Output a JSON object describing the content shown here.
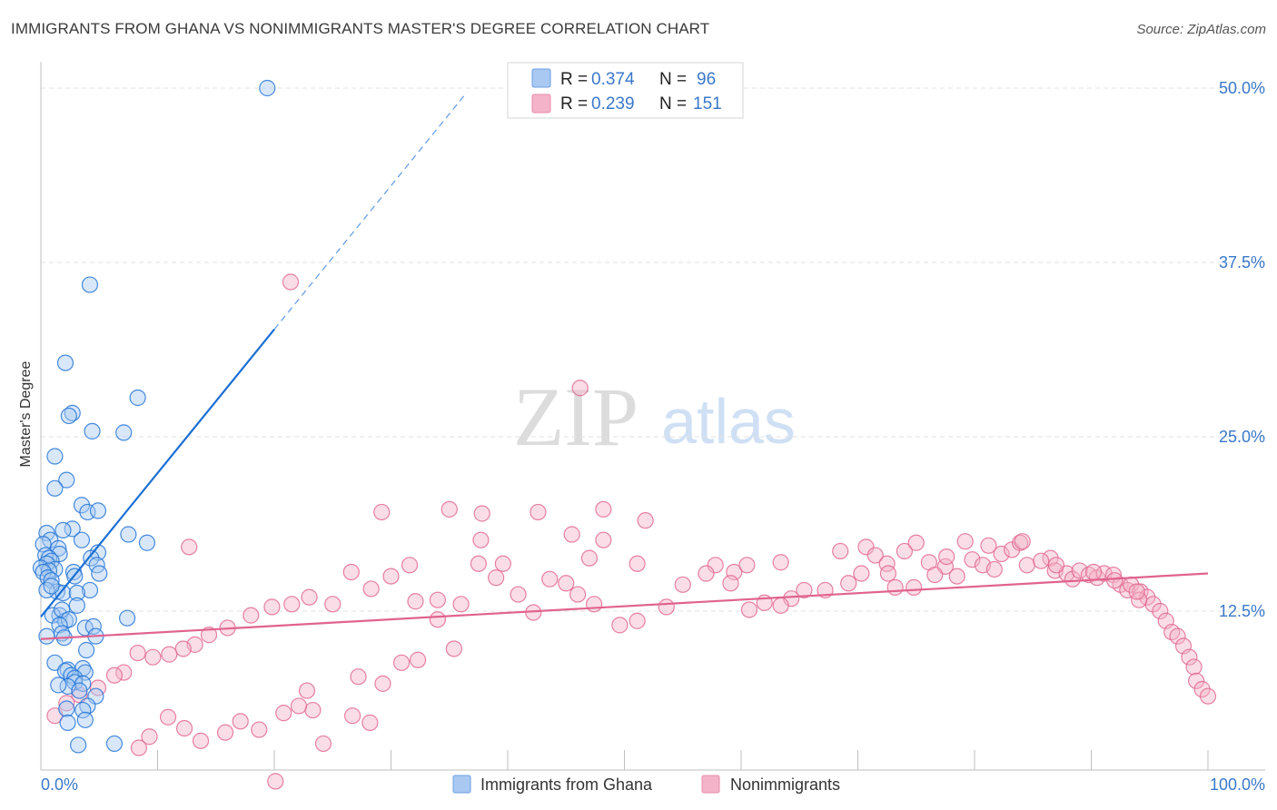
{
  "header": {
    "title": "IMMIGRANTS FROM GHANA VS NONIMMIGRANTS MASTER'S DEGREE CORRELATION CHART",
    "source": "Source: ZipAtlas.com"
  },
  "watermark": {
    "zip": "ZIP",
    "atlas": "atlas"
  },
  "colors": {
    "blue": "#1a6fd4",
    "blue_fill": "#a9c9f2",
    "pink": "#e0638f",
    "pink_fill": "#f4b3c8",
    "axis_text": "#3a78c9"
  },
  "chart_data": {
    "type": "scatter",
    "title": "IMMIGRANTS FROM GHANA VS NONIMMIGRANTS MASTER'S DEGREE CORRELATION CHART",
    "xlabel": "",
    "ylabel": "Master's Degree",
    "xlim": [
      0,
      100
    ],
    "ylim": [
      0,
      50
    ],
    "x_tick_labels": [
      "0.0%",
      "100.0%"
    ],
    "y_ticks": [
      12.5,
      25.0,
      37.5,
      50.0
    ],
    "y_tick_labels": [
      "12.5%",
      "25.0%",
      "37.5%",
      "50.0%"
    ],
    "grid": true,
    "legend": {
      "placement": "top-center",
      "entries": [
        {
          "r_label": "R =",
          "r_value": "0.374",
          "n_label": "N =",
          "n_value": "96"
        },
        {
          "r_label": "R =",
          "r_value": "0.239",
          "n_label": "N =",
          "n_value": "151"
        }
      ]
    },
    "bottom_legend": [
      "Immigrants from Ghana",
      "Nonimmigrants"
    ],
    "series": [
      {
        "name": "Immigrants from Ghana",
        "color": "#1a6fd4",
        "trend": {
          "x0": 0.0,
          "y0": 12.1,
          "x1": 20.0,
          "y1": 32.7,
          "dashed_to_x": 36.5
        },
        "points": [
          [
            19.4,
            50.0
          ],
          [
            4.2,
            35.9
          ],
          [
            2.1,
            30.3
          ],
          [
            8.3,
            27.8
          ],
          [
            2.7,
            26.7
          ],
          [
            2.4,
            26.5
          ],
          [
            4.4,
            25.4
          ],
          [
            7.1,
            25.3
          ],
          [
            1.2,
            23.6
          ],
          [
            2.2,
            21.9
          ],
          [
            1.2,
            21.3
          ],
          [
            3.5,
            20.1
          ],
          [
            4.0,
            19.6
          ],
          [
            4.9,
            19.7
          ],
          [
            2.7,
            18.4
          ],
          [
            1.9,
            18.3
          ],
          [
            0.5,
            18.1
          ],
          [
            0.8,
            17.6
          ],
          [
            3.5,
            17.6
          ],
          [
            7.5,
            18.0
          ],
          [
            9.1,
            17.4
          ],
          [
            0.2,
            17.3
          ],
          [
            1.5,
            17.0
          ],
          [
            1.6,
            16.6
          ],
          [
            4.9,
            16.7
          ],
          [
            0.4,
            16.5
          ],
          [
            0.7,
            16.3
          ],
          [
            4.3,
            16.3
          ],
          [
            0.9,
            16.1
          ],
          [
            0.5,
            15.9
          ],
          [
            4.8,
            15.8
          ],
          [
            0.0,
            15.6
          ],
          [
            1.2,
            15.5
          ],
          [
            0.7,
            15.4
          ],
          [
            0.2,
            15.3
          ],
          [
            2.8,
            15.3
          ],
          [
            5.0,
            15.2
          ],
          [
            0.6,
            14.9
          ],
          [
            2.9,
            15.0
          ],
          [
            0.9,
            14.7
          ],
          [
            1.4,
            13.9
          ],
          [
            0.5,
            14.0
          ],
          [
            1.9,
            13.8
          ],
          [
            4.2,
            14.0
          ],
          [
            3.1,
            13.8
          ],
          [
            0.9,
            14.3
          ],
          [
            3.1,
            12.9
          ],
          [
            1.6,
            12.2
          ],
          [
            1.0,
            12.2
          ],
          [
            2.1,
            11.8
          ],
          [
            1.8,
            12.6
          ],
          [
            2.4,
            11.9
          ],
          [
            7.4,
            12.0
          ],
          [
            1.6,
            11.5
          ],
          [
            3.8,
            11.3
          ],
          [
            4.5,
            11.4
          ],
          [
            1.8,
            10.9
          ],
          [
            0.5,
            10.7
          ],
          [
            2.0,
            10.6
          ],
          [
            4.7,
            10.7
          ],
          [
            3.9,
            9.7
          ],
          [
            1.2,
            8.8
          ],
          [
            2.3,
            8.3
          ],
          [
            2.1,
            8.2
          ],
          [
            3.6,
            8.4
          ],
          [
            3.8,
            8.1
          ],
          [
            2.6,
            7.9
          ],
          [
            2.9,
            7.7
          ],
          [
            2.9,
            7.4
          ],
          [
            3.6,
            7.3
          ],
          [
            2.3,
            7.1
          ],
          [
            1.5,
            7.2
          ],
          [
            3.3,
            6.8
          ],
          [
            4.7,
            6.4
          ],
          [
            4.0,
            5.7
          ],
          [
            3.6,
            5.4
          ],
          [
            2.2,
            5.5
          ],
          [
            3.8,
            4.7
          ],
          [
            2.3,
            4.5
          ],
          [
            3.2,
            2.9
          ],
          [
            6.3,
            3.0
          ]
        ]
      },
      {
        "name": "Nonimmigrants",
        "color": "#e0638f",
        "trend": {
          "x0": 0.0,
          "y0": 10.5,
          "x1": 100.0,
          "y1": 15.2
        },
        "points": [
          [
            21.4,
            36.1
          ],
          [
            46.2,
            28.5
          ],
          [
            29.2,
            19.6
          ],
          [
            35.0,
            19.8
          ],
          [
            37.8,
            19.5
          ],
          [
            42.6,
            19.6
          ],
          [
            48.2,
            19.8
          ],
          [
            51.8,
            19.0
          ],
          [
            45.5,
            18.0
          ],
          [
            48.2,
            17.6
          ],
          [
            37.7,
            17.6
          ],
          [
            12.7,
            17.1
          ],
          [
            31.6,
            15.8
          ],
          [
            39.6,
            15.9
          ],
          [
            47.0,
            16.3
          ],
          [
            51.1,
            15.9
          ],
          [
            57.8,
            15.8
          ],
          [
            59.4,
            15.3
          ],
          [
            60.5,
            15.8
          ],
          [
            63.4,
            16.0
          ],
          [
            68.5,
            16.8
          ],
          [
            70.7,
            17.1
          ],
          [
            71.5,
            16.5
          ],
          [
            72.5,
            15.9
          ],
          [
            74.0,
            16.8
          ],
          [
            75.0,
            17.4
          ],
          [
            76.1,
            16.0
          ],
          [
            77.5,
            15.7
          ],
          [
            78.5,
            15.0
          ],
          [
            79.8,
            16.2
          ],
          [
            80.7,
            15.8
          ],
          [
            81.7,
            15.5
          ],
          [
            82.3,
            16.6
          ],
          [
            83.2,
            16.9
          ],
          [
            83.9,
            17.4
          ],
          [
            84.5,
            15.8
          ],
          [
            86.5,
            16.3
          ],
          [
            86.9,
            15.4
          ],
          [
            87.9,
            15.2
          ],
          [
            88.4,
            14.8
          ],
          [
            89.0,
            15.4
          ],
          [
            89.8,
            15.1
          ],
          [
            90.5,
            14.9
          ],
          [
            91.1,
            15.2
          ],
          [
            91.9,
            15.1
          ],
          [
            92.5,
            14.4
          ],
          [
            93.1,
            14.0
          ],
          [
            93.4,
            14.4
          ],
          [
            94.2,
            13.9
          ],
          [
            94.8,
            13.5
          ],
          [
            95.3,
            13.0
          ],
          [
            95.9,
            12.5
          ],
          [
            96.4,
            11.8
          ],
          [
            96.9,
            11.0
          ],
          [
            97.4,
            10.7
          ],
          [
            97.9,
            10.0
          ],
          [
            98.4,
            9.2
          ],
          [
            98.8,
            8.5
          ],
          [
            99.0,
            7.5
          ],
          [
            99.5,
            6.9
          ],
          [
            100.0,
            6.4
          ],
          [
            94.1,
            13.3
          ],
          [
            93.9,
            13.9
          ],
          [
            92.0,
            14.7
          ],
          [
            90.2,
            15.3
          ],
          [
            87.0,
            15.8
          ],
          [
            85.7,
            16.1
          ],
          [
            84.1,
            17.5
          ],
          [
            81.2,
            17.2
          ],
          [
            79.2,
            17.5
          ],
          [
            77.6,
            16.4
          ],
          [
            76.6,
            15.1
          ],
          [
            74.8,
            14.2
          ],
          [
            73.2,
            14.2
          ],
          [
            72.6,
            15.2
          ],
          [
            70.3,
            15.2
          ],
          [
            69.2,
            14.5
          ],
          [
            67.2,
            14.0
          ],
          [
            65.4,
            14.0
          ],
          [
            64.3,
            13.4
          ],
          [
            63.4,
            12.9
          ],
          [
            62.0,
            13.1
          ],
          [
            60.7,
            12.6
          ],
          [
            59.1,
            14.5
          ],
          [
            57.0,
            15.2
          ],
          [
            55.0,
            14.4
          ],
          [
            53.6,
            12.8
          ],
          [
            51.1,
            11.8
          ],
          [
            49.6,
            11.5
          ],
          [
            47.4,
            13.0
          ],
          [
            46.0,
            13.7
          ],
          [
            45.0,
            14.5
          ],
          [
            43.6,
            14.8
          ],
          [
            42.2,
            12.4
          ],
          [
            40.9,
            13.7
          ],
          [
            39.0,
            14.9
          ],
          [
            37.5,
            15.9
          ],
          [
            36.0,
            13.0
          ],
          [
            34.0,
            13.3
          ],
          [
            32.1,
            13.2
          ],
          [
            30.0,
            15.0
          ],
          [
            28.3,
            14.1
          ],
          [
            26.6,
            15.3
          ],
          [
            25.0,
            13.0
          ],
          [
            23.0,
            13.5
          ],
          [
            21.5,
            13.0
          ],
          [
            19.8,
            12.8
          ],
          [
            18.0,
            12.2
          ],
          [
            16.0,
            11.3
          ],
          [
            14.4,
            10.8
          ],
          [
            13.2,
            10.1
          ],
          [
            12.2,
            9.8
          ],
          [
            11.0,
            9.4
          ],
          [
            9.6,
            9.2
          ],
          [
            8.3,
            9.5
          ],
          [
            7.1,
            8.1
          ],
          [
            6.3,
            7.9
          ],
          [
            4.9,
            7.0
          ],
          [
            3.3,
            6.5
          ],
          [
            2.2,
            5.9
          ],
          [
            1.2,
            5.0
          ],
          [
            34.0,
            11.9
          ],
          [
            35.4,
            9.8
          ],
          [
            32.3,
            9.0
          ],
          [
            30.9,
            8.8
          ],
          [
            29.3,
            7.3
          ],
          [
            27.2,
            7.8
          ],
          [
            22.8,
            6.8
          ],
          [
            23.3,
            5.4
          ],
          [
            22.1,
            5.7
          ],
          [
            26.7,
            5.0
          ],
          [
            28.2,
            4.5
          ],
          [
            20.8,
            5.2
          ],
          [
            18.7,
            4.0
          ],
          [
            17.1,
            4.6
          ],
          [
            15.8,
            3.8
          ],
          [
            13.7,
            3.2
          ],
          [
            12.3,
            4.1
          ],
          [
            10.9,
            4.9
          ],
          [
            9.3,
            3.5
          ],
          [
            8.4,
            2.7
          ],
          [
            24.2,
            3.0
          ],
          [
            20.1,
            0.3
          ]
        ]
      }
    ]
  },
  "bottom_legend": [
    "Immigrants from Ghana",
    "Nonimmigrants"
  ]
}
